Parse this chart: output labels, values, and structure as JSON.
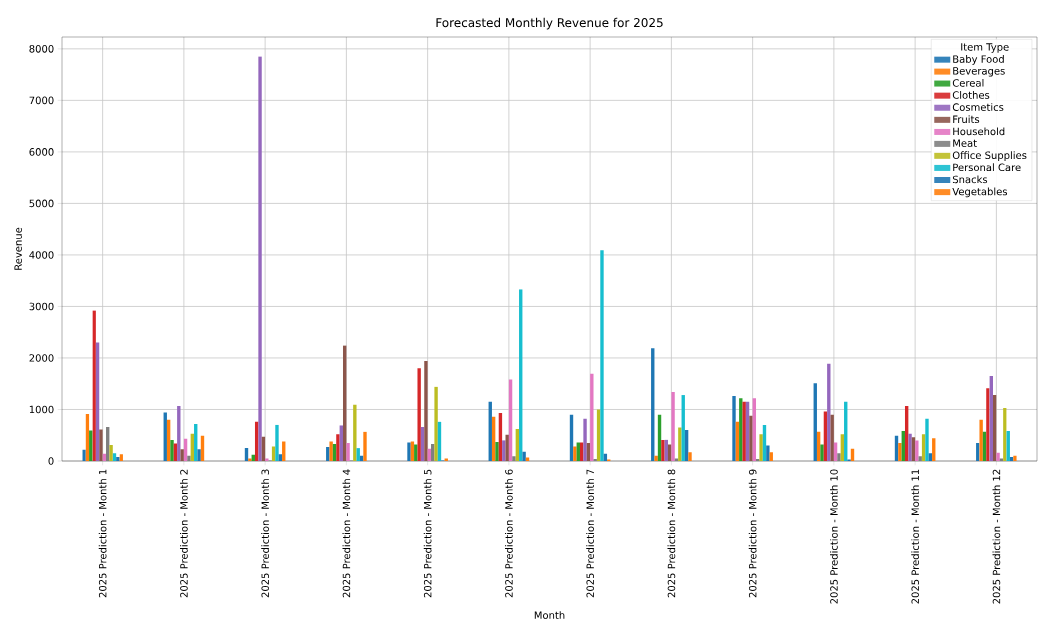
{
  "chart_data": {
    "type": "bar",
    "title": "Forecasted Monthly Revenue for 2025",
    "xlabel": "Month",
    "ylabel": "Revenue",
    "legend_title": "Item Type",
    "legend": "top right",
    "grid": true,
    "categories": [
      "2025 Prediction - Month 1",
      "2025 Prediction - Month 2",
      "2025 Prediction - Month 3",
      "2025 Prediction - Month 4",
      "2025 Prediction - Month 5",
      "2025 Prediction - Month 6",
      "2025 Prediction - Month 7",
      "2025 Prediction - Month 8",
      "2025 Prediction - Month 9",
      "2025 Prediction - Month 10",
      "2025 Prediction - Month 11",
      "2025 Prediction - Month 12"
    ],
    "ylim": [
      0,
      8230
    ],
    "yticks": [
      0,
      1000,
      2000,
      3000,
      4000,
      5000,
      6000,
      7000,
      8000
    ],
    "series": [
      {
        "name": "Baby Food",
        "color": "#1f77b4",
        "values": [
          220,
          940,
          250,
          270,
          360,
          1150,
          900,
          2190,
          1260,
          1510,
          490,
          350
        ]
      },
      {
        "name": "Beverages",
        "color": "#ff7f0e",
        "values": [
          910,
          800,
          50,
          380,
          380,
          860,
          280,
          100,
          760,
          570,
          350,
          800
        ]
      },
      {
        "name": "Cereal",
        "color": "#2ca02c",
        "values": [
          590,
          410,
          120,
          330,
          320,
          370,
          360,
          900,
          1220,
          320,
          580,
          570
        ]
      },
      {
        "name": "Clothes",
        "color": "#d62728",
        "values": [
          2920,
          340,
          760,
          520,
          1800,
          930,
          360,
          410,
          1150,
          960,
          1070,
          1410
        ]
      },
      {
        "name": "Cosmetics",
        "color": "#9467bd",
        "values": [
          2300,
          1070,
          7850,
          690,
          660,
          400,
          820,
          410,
          1150,
          1890,
          530,
          1650
        ]
      },
      {
        "name": "Fruits",
        "color": "#8c564b",
        "values": [
          610,
          230,
          470,
          2240,
          1940,
          510,
          350,
          320,
          880,
          900,
          460,
          1280
        ]
      },
      {
        "name": "Household",
        "color": "#e377c2",
        "values": [
          140,
          430,
          50,
          350,
          240,
          1580,
          1700,
          1340,
          1220,
          360,
          400,
          160
        ]
      },
      {
        "name": "Meat",
        "color": "#7f7f7f",
        "values": [
          660,
          100,
          10,
          10,
          330,
          90,
          40,
          50,
          40,
          150,
          90,
          50
        ]
      },
      {
        "name": "Office Supplies",
        "color": "#bcbd22",
        "values": [
          310,
          530,
          280,
          1090,
          1440,
          620,
          1000,
          650,
          520,
          520,
          520,
          1030
        ]
      },
      {
        "name": "Personal Care",
        "color": "#17becf",
        "values": [
          150,
          720,
          700,
          250,
          760,
          3330,
          4090,
          1280,
          700,
          1150,
          820,
          580
        ]
      },
      {
        "name": "Snacks",
        "color": "#1f77b4",
        "values": [
          80,
          230,
          130,
          100,
          10,
          180,
          140,
          600,
          300,
          30,
          150,
          80
        ]
      },
      {
        "name": "Vegetables",
        "color": "#ff7f0e",
        "values": [
          130,
          490,
          380,
          570,
          50,
          70,
          30,
          170,
          170,
          240,
          440,
          100
        ]
      }
    ]
  }
}
